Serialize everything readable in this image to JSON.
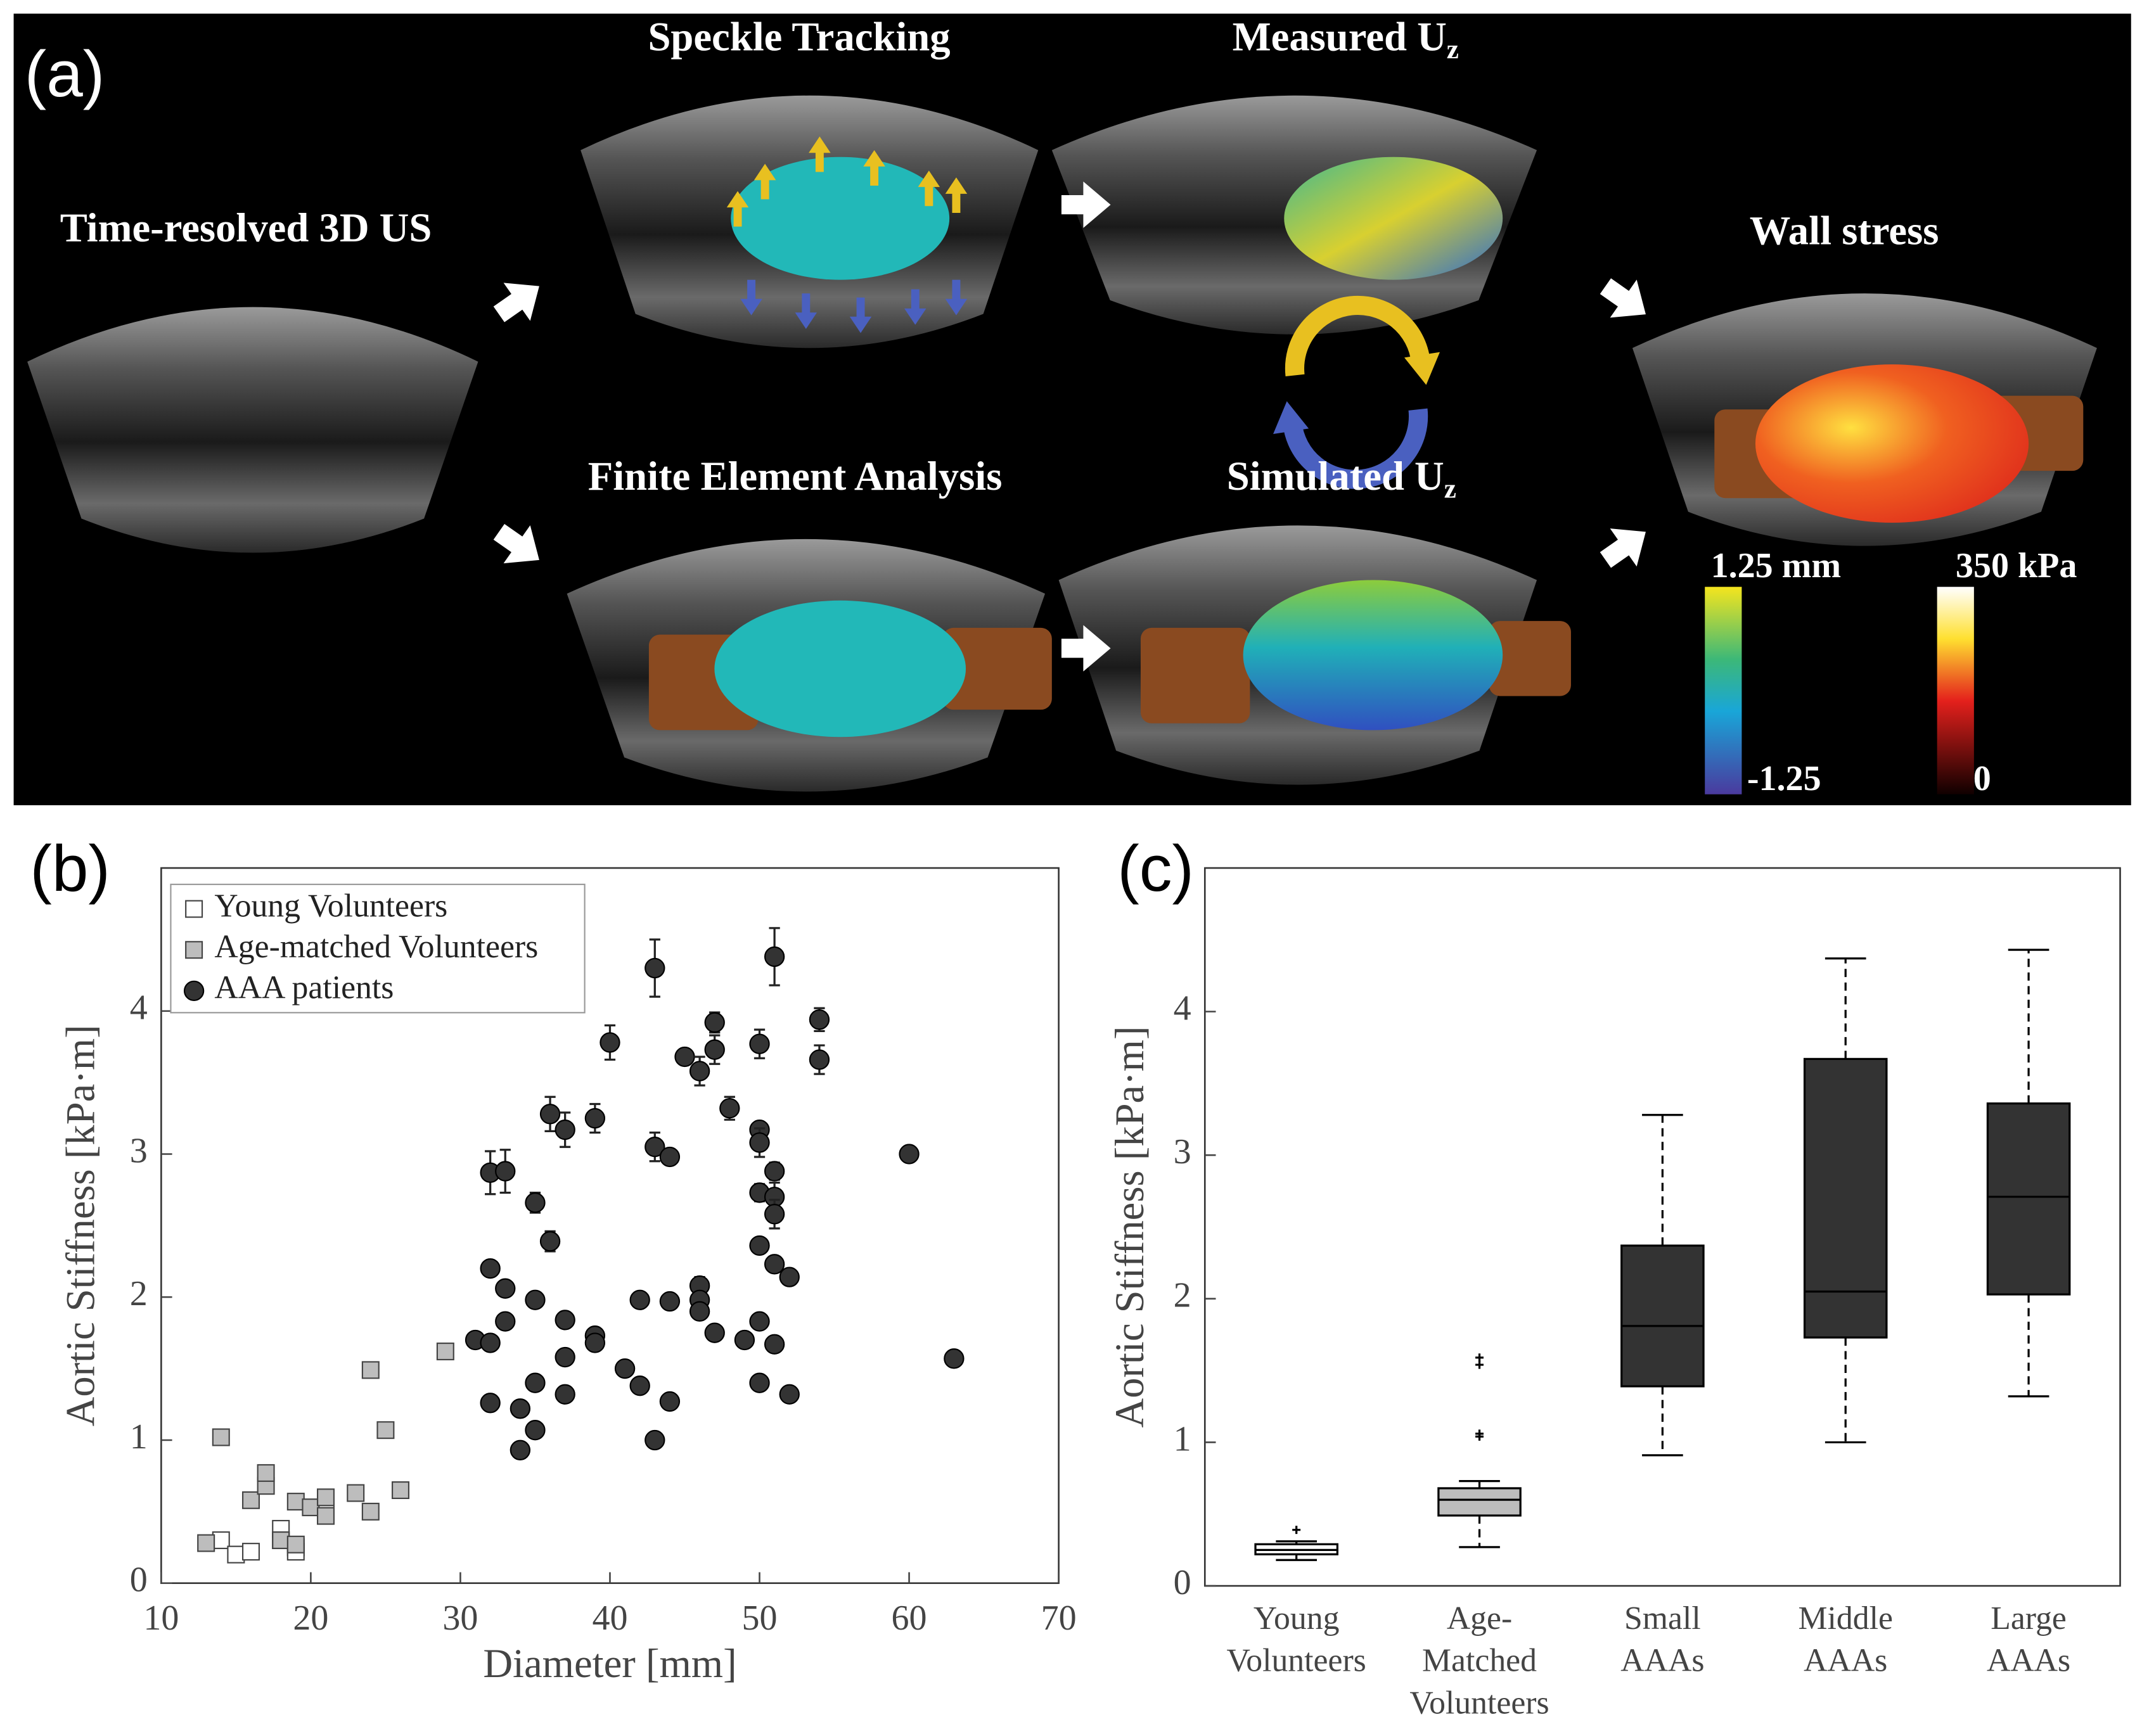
{
  "panel_a": {
    "label": "(a)",
    "step_input": "Time-resolved 3D US",
    "step_tracking": "Speckle Tracking",
    "step_measured": {
      "text": "Measured U",
      "sub": "z"
    },
    "step_fea": "Finite Element Analysis",
    "step_simulated": {
      "text": "Simulated U",
      "sub": "z"
    },
    "step_stress": "Wall stress",
    "colorbar_displacement": {
      "top": "1.25 mm",
      "bottom": "-1.25"
    },
    "colorbar_stress": {
      "top": "350 kPa",
      "bottom": "0"
    }
  },
  "chart_data": [
    {
      "type": "scatter",
      "panel_label": "(b)",
      "x_label": "Diameter [mm]",
      "y_label": "Aortic Stiffness [kPa·m]",
      "xlim": [
        10,
        70
      ],
      "xticks": [
        10,
        20,
        30,
        40,
        50,
        60,
        70
      ],
      "ylim": [
        0,
        5
      ],
      "yticks": [
        0,
        1,
        2,
        3,
        4
      ],
      "legend": "upper left",
      "series": [
        {
          "name": "Young Volunteers",
          "marker": "square",
          "color": "#ffffff",
          "x": [
            14,
            15,
            16,
            18,
            18,
            19,
            21,
            19
          ],
          "values": [
            0.3,
            0.2,
            0.22,
            0.38,
            0.3,
            0.25,
            0.5,
            0.22
          ]
        },
        {
          "name": "Age-matched Volunteers",
          "marker": "square",
          "color": "#bdbdbd",
          "x": [
            13,
            14,
            16,
            17,
            17,
            18,
            19,
            19,
            20,
            21,
            21,
            23,
            24,
            24,
            25,
            26,
            29
          ],
          "values": [
            0.28,
            1.02,
            0.58,
            0.68,
            0.77,
            0.3,
            0.57,
            0.27,
            0.53,
            0.47,
            0.6,
            0.63,
            0.5,
            1.49,
            1.07,
            0.65,
            1.62
          ]
        },
        {
          "name": "AAA patients",
          "marker": "circle",
          "color": "#333333",
          "x": [
            31,
            32,
            33,
            32,
            32,
            33,
            33,
            32,
            34,
            34,
            35,
            35,
            35,
            35,
            36,
            36,
            37,
            37,
            37,
            37,
            39,
            39,
            39,
            40,
            41,
            42,
            42,
            43,
            43,
            43,
            44,
            44,
            44,
            45,
            46,
            46,
            46,
            46,
            47,
            47,
            47,
            48,
            49,
            50,
            50,
            50,
            50,
            50,
            50,
            50,
            51,
            51,
            51,
            51,
            51,
            51,
            52,
            52,
            54,
            54,
            60,
            63
          ],
          "values": [
            1.7,
            2.87,
            2.88,
            2.2,
            1.68,
            2.06,
            1.83,
            1.26,
            1.22,
            0.93,
            1.07,
            1.4,
            1.98,
            2.66,
            2.39,
            3.28,
            3.17,
            1.84,
            1.58,
            1.32,
            1.73,
            1.68,
            3.25,
            3.78,
            1.5,
            1.98,
            1.38,
            1.0,
            4.3,
            3.05,
            2.98,
            1.97,
            1.27,
            3.68,
            3.58,
            2.08,
            1.98,
            1.9,
            3.92,
            3.73,
            1.75,
            3.32,
            1.7,
            3.77,
            3.17,
            3.08,
            2.73,
            2.36,
            1.83,
            1.4,
            4.38,
            2.88,
            2.7,
            2.58,
            2.23,
            1.67,
            2.14,
            1.32,
            3.94,
            3.66,
            3.0,
            1.57
          ],
          "errors": [
            null,
            0.15,
            0.15,
            null,
            null,
            null,
            null,
            null,
            null,
            null,
            null,
            null,
            null,
            0.07,
            0.07,
            0.12,
            0.12,
            null,
            null,
            null,
            null,
            null,
            0.1,
            0.12,
            null,
            null,
            null,
            null,
            0.2,
            0.1,
            0.05,
            null,
            null,
            0.05,
            0.1,
            0.06,
            null,
            null,
            0.07,
            0.1,
            null,
            0.08,
            null,
            0.1,
            0.05,
            0.1,
            0.06,
            null,
            null,
            null,
            0.2,
            0.06,
            0.1,
            0.1,
            null,
            null,
            null,
            null,
            0.08,
            0.1,
            null,
            null
          ]
        }
      ]
    },
    {
      "type": "box",
      "panel_label": "(c)",
      "y_label": "Aortic Stiffness [kPa·m]",
      "ylim": [
        0,
        5
      ],
      "yticks": [
        0,
        1,
        2,
        3,
        4
      ],
      "categories": [
        [
          "Young",
          "Volunteers"
        ],
        [
          "Age-",
          "Matched",
          "Volunteers"
        ],
        [
          "Small",
          "AAAs"
        ],
        [
          "Middle",
          "AAAs"
        ],
        [
          "Large",
          "AAAs"
        ]
      ],
      "colors": [
        "#ffffff",
        "#bdbdbd",
        "#333333",
        "#333333",
        "#333333"
      ],
      "median_colors": [
        "#000000",
        "#000000",
        "#000000",
        "#000000",
        "#000000"
      ],
      "boxes": [
        {
          "min": 0.18,
          "q1": 0.22,
          "median": 0.25,
          "q3": 0.29,
          "max": 0.31,
          "outliers": [
            0.39
          ]
        },
        {
          "min": 0.27,
          "q1": 0.49,
          "median": 0.6,
          "q3": 0.68,
          "max": 0.73,
          "outliers": [
            1.04,
            1.06,
            1.54,
            1.59
          ]
        },
        {
          "min": 0.91,
          "q1": 1.39,
          "median": 1.81,
          "q3": 2.37,
          "max": 3.28,
          "outliers": []
        },
        {
          "min": 1.0,
          "q1": 1.73,
          "median": 2.05,
          "q3": 3.67,
          "max": 4.37,
          "outliers": []
        },
        {
          "min": 1.32,
          "q1": 2.03,
          "median": 2.71,
          "q3": 3.36,
          "max": 4.43,
          "outliers": []
        }
      ]
    }
  ]
}
